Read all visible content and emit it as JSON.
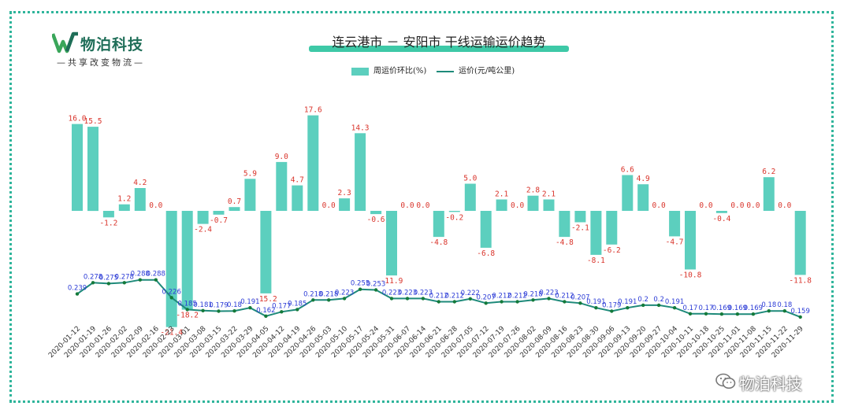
{
  "logo": {
    "name": "物泊科技",
    "tagline": "—共享改变物流—"
  },
  "chart_data": {
    "type": "bar+line",
    "title": "连云港市 － 安阳市 干线运输运价趋势",
    "legend": [
      {
        "name": "周运价环比(%)",
        "kind": "bar",
        "color": "#5ccfbe"
      },
      {
        "name": "运价(元/吨公里)",
        "kind": "line",
        "color": "#1e8a7a"
      }
    ],
    "categories": [
      "2020-01-12",
      "2020-01-19",
      "2020-01-26",
      "2020-02-02",
      "2020-02-09",
      "2020-02-16",
      "2020-02-23",
      "2020-03-01",
      "2020-03-08",
      "2020-03-15",
      "2020-03-22",
      "2020-03-29",
      "2020-04-05",
      "2020-04-12",
      "2020-04-19",
      "2020-04-26",
      "2020-05-03",
      "2020-05-10",
      "2020-05-17",
      "2020-05-24",
      "2020-05-31",
      "2020-06-07",
      "2020-06-14",
      "2020-06-21",
      "2020-06-28",
      "2020-07-05",
      "2020-07-12",
      "2020-07-19",
      "2020-07-26",
      "2020-08-02",
      "2020-08-09",
      "2020-08-16",
      "2020-08-23",
      "2020-08-30",
      "2020-09-06",
      "2020-09-13",
      "2020-09-20",
      "2020-09-27",
      "2020-10-04",
      "2020-10-11",
      "2020-10-18",
      "2020-10-25",
      "2020-11-01",
      "2020-11-08",
      "2020-11-15",
      "2020-11-22",
      "2020-11-29"
    ],
    "bar_labels": [
      "16.0",
      "15.5",
      "-1.2",
      "1.2",
      "4.2",
      "0.0",
      "-21.4",
      "-18.2",
      "-2.4",
      "-0.7",
      "0.7",
      "5.9",
      "-15.2",
      "9.0",
      "4.7",
      "17.6",
      "0.0",
      "2.3",
      "14.3",
      "-0.6",
      "-11.9",
      "0.0",
      "0.0",
      "-4.8",
      "-0.2",
      "5.0",
      "-6.8",
      "2.1",
      "0.0",
      "2.8",
      "2.1",
      "-4.8",
      "-2.1",
      "-8.1",
      "-6.2",
      "6.6",
      "4.9",
      "0.0",
      "-4.7",
      "-10.8",
      "0.0",
      "-0.4",
      "0.0",
      "0.0",
      "6.2",
      "0.0",
      "-11.8"
    ],
    "bar_values": [
      16.0,
      15.5,
      -1.2,
      1.2,
      4.2,
      0.0,
      -21.4,
      -18.2,
      -2.4,
      -0.7,
      0.7,
      5.9,
      -15.2,
      9.0,
      4.7,
      17.6,
      0.0,
      2.3,
      14.3,
      -0.6,
      -11.9,
      0.0,
      0.0,
      -4.8,
      -0.2,
      5.0,
      -6.8,
      2.1,
      0.0,
      2.8,
      2.1,
      -4.8,
      -2.1,
      -8.1,
      -6.2,
      6.6,
      4.9,
      0.0,
      -4.7,
      -10.8,
      0.0,
      -0.4,
      0.0,
      0.0,
      6.2,
      0.0,
      -11.8
    ],
    "line_labels": [
      "0.239",
      "0.278",
      "0.275",
      "0.278",
      "0.288",
      "0.288",
      "0.226",
      "0.185",
      "0.181",
      "0.179",
      "0.18",
      "0.191",
      "0.162",
      "0.177",
      "0.185",
      "0.218",
      "0.218",
      "0.223",
      "0.255",
      "0.253",
      "0.223",
      "0.223",
      "0.223",
      "0.212",
      "0.212",
      "0.222",
      "0.207",
      "0.212",
      "0.212",
      "0.218",
      "0.223",
      "0.212",
      "0.207",
      "0.191",
      "0.179",
      "0.191",
      "0.2",
      "0.2",
      "0.191",
      "0.17",
      "0.17",
      "0.169",
      "0.169",
      "0.169",
      "0.18",
      "0.18",
      "0.159"
    ],
    "line_values": [
      0.239,
      0.278,
      0.275,
      0.278,
      0.288,
      0.288,
      0.226,
      0.185,
      0.181,
      0.179,
      0.18,
      0.191,
      0.162,
      0.177,
      0.185,
      0.218,
      0.218,
      0.223,
      0.255,
      0.253,
      0.223,
      0.223,
      0.223,
      0.212,
      0.212,
      0.222,
      0.207,
      0.212,
      0.212,
      0.218,
      0.223,
      0.212,
      0.207,
      0.191,
      0.179,
      0.191,
      0.2,
      0.2,
      0.191,
      0.17,
      0.17,
      0.169,
      0.169,
      0.169,
      0.18,
      0.18,
      0.159
    ],
    "colors": {
      "bar": "#5ccfbe",
      "line": "#1e8a7a",
      "marker": "#147a3a",
      "bar_label": "#d9342b",
      "line_label": "#2b3bd6",
      "tick": "#333333"
    }
  },
  "watermark": {
    "text": "物泊科技",
    "icon": "wechat-icon"
  }
}
